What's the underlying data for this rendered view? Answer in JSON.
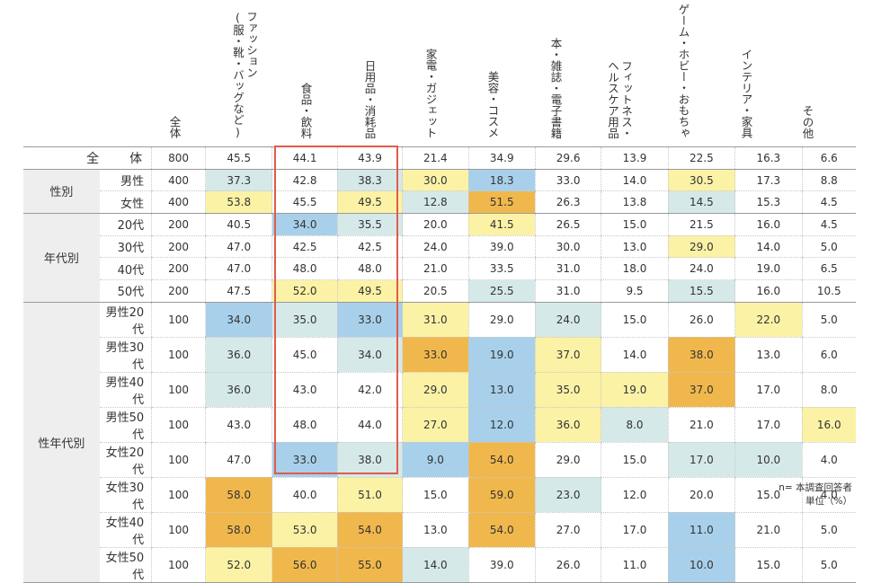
{
  "columns": [
    "全体",
    "ファッション\n(服・靴・バッグなど)",
    "食品・飲料",
    "日用品・消耗品",
    "家電・ガジェット",
    "美容・コスメ",
    "本・雑誌・電子書籍",
    "フィットネス・\nヘルスケア用品",
    "ゲーム・ホビー・おもちゃ",
    "インテリア・家具",
    "その他"
  ],
  "groups": [
    "性別",
    "年代別",
    "性年代別"
  ],
  "rows": [
    {
      "label": "全　体",
      "n": "800",
      "values": [
        "45.5",
        "44.1",
        "43.9",
        "21.4",
        "34.9",
        "29.6",
        "13.9",
        "22.5",
        "16.3",
        "6.6"
      ],
      "colors": [
        "",
        "",
        "",
        "",
        "",
        "",
        "",
        "",
        "",
        ""
      ]
    },
    {
      "label": "男性",
      "n": "400",
      "values": [
        "37.3",
        "42.8",
        "38.3",
        "30.0",
        "18.3",
        "33.0",
        "14.0",
        "30.5",
        "17.3",
        "8.8"
      ],
      "colors": [
        "teal",
        "",
        "teal",
        "yellow",
        "blue",
        "",
        "",
        "yellow",
        "",
        ""
      ]
    },
    {
      "label": "女性",
      "n": "400",
      "values": [
        "53.8",
        "45.5",
        "49.5",
        "12.8",
        "51.5",
        "26.3",
        "13.8",
        "14.5",
        "15.3",
        "4.5"
      ],
      "colors": [
        "yellow",
        "",
        "yellow",
        "teal",
        "gold",
        "",
        "",
        "teal",
        "",
        ""
      ]
    },
    {
      "label": "20代",
      "n": "200",
      "values": [
        "40.5",
        "34.0",
        "35.5",
        "20.0",
        "41.5",
        "26.5",
        "15.0",
        "21.5",
        "16.0",
        "4.5"
      ],
      "colors": [
        "",
        "blue",
        "teal",
        "",
        "yellow",
        "",
        "",
        "",
        "",
        ""
      ]
    },
    {
      "label": "30代",
      "n": "200",
      "values": [
        "47.0",
        "42.5",
        "42.5",
        "24.0",
        "39.0",
        "30.0",
        "13.0",
        "29.0",
        "14.0",
        "5.0"
      ],
      "colors": [
        "",
        "",
        "",
        "",
        "",
        "",
        "",
        "yellow",
        "",
        ""
      ]
    },
    {
      "label": "40代",
      "n": "200",
      "values": [
        "47.0",
        "48.0",
        "48.0",
        "21.0",
        "33.5",
        "31.0",
        "18.0",
        "24.0",
        "19.0",
        "6.5"
      ],
      "colors": [
        "",
        "",
        "",
        "",
        "",
        "",
        "",
        "",
        "",
        ""
      ]
    },
    {
      "label": "50代",
      "n": "200",
      "values": [
        "47.5",
        "52.0",
        "49.5",
        "20.5",
        "25.5",
        "31.0",
        "9.5",
        "15.5",
        "16.0",
        "10.5"
      ],
      "colors": [
        "",
        "yellow",
        "yellow",
        "",
        "teal",
        "",
        "",
        "teal",
        "",
        ""
      ]
    },
    {
      "label": "男性20代",
      "n": "100",
      "values": [
        "34.0",
        "35.0",
        "33.0",
        "31.0",
        "29.0",
        "24.0",
        "15.0",
        "26.0",
        "22.0",
        "5.0"
      ],
      "colors": [
        "blue",
        "teal",
        "blue",
        "yellow",
        "",
        "teal",
        "",
        "",
        "yellow",
        ""
      ]
    },
    {
      "label": "男性30代",
      "n": "100",
      "values": [
        "36.0",
        "45.0",
        "34.0",
        "33.0",
        "19.0",
        "37.0",
        "14.0",
        "38.0",
        "13.0",
        "6.0"
      ],
      "colors": [
        "teal",
        "",
        "teal",
        "gold",
        "blue",
        "yellow",
        "",
        "gold",
        "",
        ""
      ]
    },
    {
      "label": "男性40代",
      "n": "100",
      "values": [
        "36.0",
        "43.0",
        "42.0",
        "29.0",
        "13.0",
        "35.0",
        "19.0",
        "37.0",
        "17.0",
        "8.0"
      ],
      "colors": [
        "teal",
        "",
        "",
        "yellow",
        "blue",
        "yellow",
        "yellow",
        "gold",
        "",
        ""
      ]
    },
    {
      "label": "男性50代",
      "n": "100",
      "values": [
        "43.0",
        "48.0",
        "44.0",
        "27.0",
        "12.0",
        "36.0",
        "8.0",
        "21.0",
        "17.0",
        "16.0"
      ],
      "colors": [
        "",
        "",
        "",
        "yellow",
        "blue",
        "yellow",
        "teal",
        "",
        "",
        "yellow"
      ]
    },
    {
      "label": "女性20代",
      "n": "100",
      "values": [
        "47.0",
        "33.0",
        "38.0",
        "9.0",
        "54.0",
        "29.0",
        "15.0",
        "17.0",
        "10.0",
        "4.0"
      ],
      "colors": [
        "",
        "blue",
        "teal",
        "blue",
        "gold",
        "",
        "",
        "teal",
        "teal",
        ""
      ]
    },
    {
      "label": "女性30代",
      "n": "100",
      "values": [
        "58.0",
        "40.0",
        "51.0",
        "15.0",
        "59.0",
        "23.0",
        "12.0",
        "20.0",
        "15.0",
        "4.0"
      ],
      "colors": [
        "gold",
        "",
        "yellow",
        "",
        "gold",
        "teal",
        "",
        "",
        "",
        ""
      ]
    },
    {
      "label": "女性40代",
      "n": "100",
      "values": [
        "58.0",
        "53.0",
        "54.0",
        "13.0",
        "54.0",
        "27.0",
        "17.0",
        "11.0",
        "21.0",
        "5.0"
      ],
      "colors": [
        "gold",
        "yellow",
        "gold",
        "",
        "gold",
        "",
        "",
        "blue",
        "",
        ""
      ]
    },
    {
      "label": "女性50代",
      "n": "100",
      "values": [
        "52.0",
        "56.0",
        "55.0",
        "14.0",
        "39.0",
        "26.0",
        "11.0",
        "10.0",
        "15.0",
        "5.0"
      ],
      "colors": [
        "yellow",
        "gold",
        "gold",
        "teal",
        "",
        "",
        "",
        "blue",
        "",
        ""
      ]
    }
  ],
  "footnote": {
    "line1": "n= 本調査回答者",
    "line2": "単位（%）"
  },
  "colors": {
    "yellow": "#fbf2a6",
    "gold": "#f0b84c",
    "blue": "#a8d0ea",
    "teal": "#d6e9e9",
    "highlight_border": "#e05b4c"
  }
}
